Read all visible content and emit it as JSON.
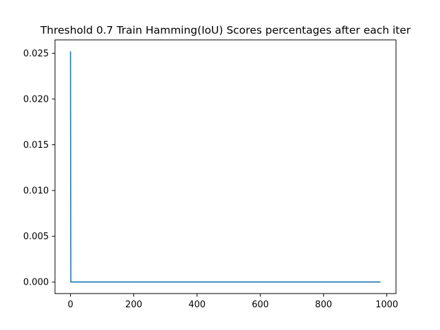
{
  "chart_data": {
    "type": "line",
    "title": "Threshold 0.7 Train Hamming(IoU) Scores percentages after each iter",
    "xlabel": "",
    "ylabel": "",
    "xlim": [
      -49,
      1029
    ],
    "ylim": [
      -0.00126,
      0.02646
    ],
    "xticks": [
      0,
      200,
      400,
      600,
      800,
      1000
    ],
    "xtick_labels": [
      "0",
      "200",
      "400",
      "600",
      "800",
      "1000"
    ],
    "yticks": [
      0.0,
      0.005,
      0.01,
      0.015,
      0.02,
      0.025
    ],
    "ytick_labels": [
      "0.000",
      "0.005",
      "0.010",
      "0.015",
      "0.020",
      "0.025"
    ],
    "grid": false,
    "series": [
      {
        "name": "train_hamming_iou",
        "color": "#1f77b4",
        "x": [
          0,
          1,
          980
        ],
        "y": [
          0.0252,
          0.0,
          0.0
        ]
      }
    ]
  }
}
